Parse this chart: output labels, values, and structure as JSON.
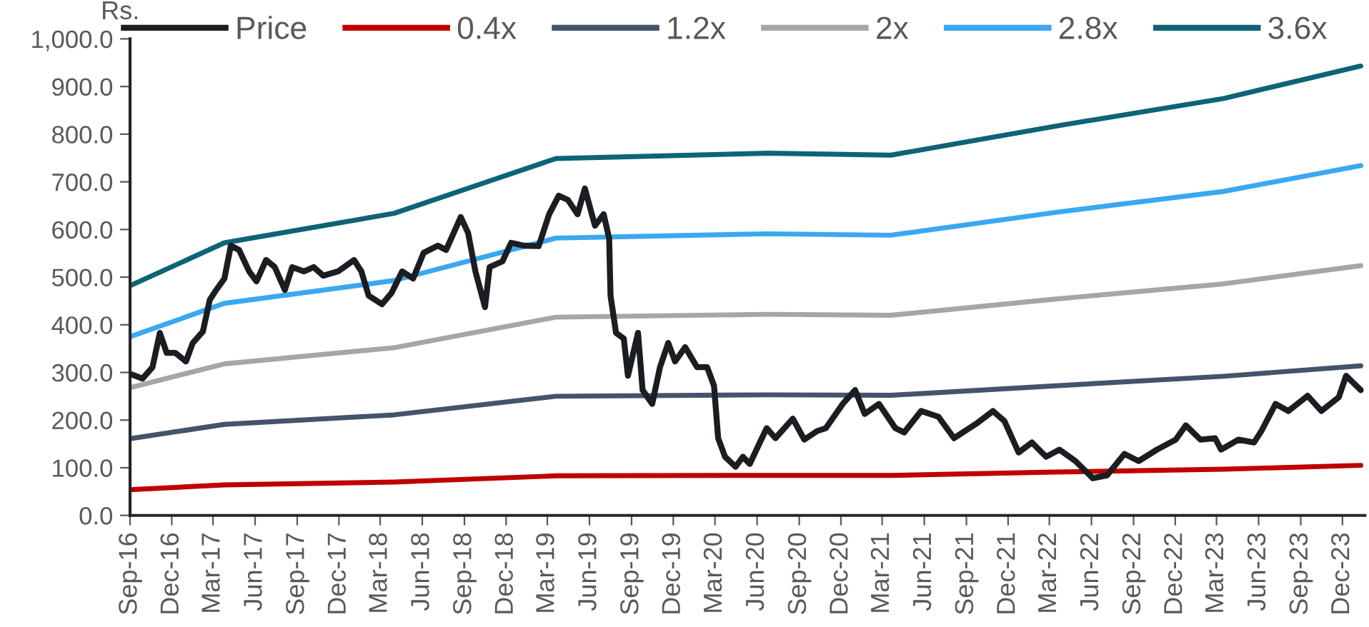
{
  "chart_data": {
    "type": "line",
    "ylabel": "Rs.",
    "legend": "top",
    "grid": false,
    "xlim": [
      "2016-09-01",
      "2024-01-19"
    ],
    "ylim": [
      0,
      1000
    ],
    "yticks": [
      {
        "value": 0,
        "label": "0.0"
      },
      {
        "value": 100,
        "label": "100.0"
      },
      {
        "value": 200,
        "label": "200.0"
      },
      {
        "value": 300,
        "label": "300.0"
      },
      {
        "value": 400,
        "label": "400.0"
      },
      {
        "value": 500,
        "label": "500.0"
      },
      {
        "value": 600,
        "label": "600.0"
      },
      {
        "value": 700,
        "label": "700.0"
      },
      {
        "value": 800,
        "label": "800.0"
      },
      {
        "value": 900,
        "label": "900.0"
      },
      {
        "value": 1000,
        "label": "1,000.0"
      }
    ],
    "xticks": [
      {
        "value": "2016-09-01",
        "label": "Sep-16"
      },
      {
        "value": "2016-12-01",
        "label": "Dec-16"
      },
      {
        "value": "2017-03-01",
        "label": "Mar-17"
      },
      {
        "value": "2017-06-01",
        "label": "Jun-17"
      },
      {
        "value": "2017-09-01",
        "label": "Sep-17"
      },
      {
        "value": "2017-12-01",
        "label": "Dec-17"
      },
      {
        "value": "2018-03-01",
        "label": "Mar-18"
      },
      {
        "value": "2018-06-01",
        "label": "Jun-18"
      },
      {
        "value": "2018-09-01",
        "label": "Sep-18"
      },
      {
        "value": "2018-12-01",
        "label": "Dec-18"
      },
      {
        "value": "2019-03-01",
        "label": "Mar-19"
      },
      {
        "value": "2019-06-01",
        "label": "Jun-19"
      },
      {
        "value": "2019-09-01",
        "label": "Sep-19"
      },
      {
        "value": "2019-12-01",
        "label": "Dec-19"
      },
      {
        "value": "2020-03-01",
        "label": "Mar-20"
      },
      {
        "value": "2020-06-01",
        "label": "Jun-20"
      },
      {
        "value": "2020-09-01",
        "label": "Sep-20"
      },
      {
        "value": "2020-12-01",
        "label": "Dec-20"
      },
      {
        "value": "2021-03-01",
        "label": "Mar-21"
      },
      {
        "value": "2021-06-01",
        "label": "Jun-21"
      },
      {
        "value": "2021-09-01",
        "label": "Sep-21"
      },
      {
        "value": "2021-12-01",
        "label": "Dec-21"
      },
      {
        "value": "2022-03-01",
        "label": "Mar-22"
      },
      {
        "value": "2022-06-01",
        "label": "Jun-22"
      },
      {
        "value": "2022-09-01",
        "label": "Sep-22"
      },
      {
        "value": "2022-12-01",
        "label": "Dec-22"
      },
      {
        "value": "2023-03-01",
        "label": "Mar-23"
      },
      {
        "value": "2023-06-01",
        "label": "Jun-23"
      },
      {
        "value": "2023-09-01",
        "label": "Sep-23"
      },
      {
        "value": "2023-12-01",
        "label": "Dec-23"
      }
    ],
    "series": [
      {
        "name": "Price",
        "color": "#1a1d21",
        "x": [
          "2016-09-04",
          "2016-09-28",
          "2016-10-20",
          "2016-11-05",
          "2016-11-20",
          "2016-12-09",
          "2017-01-01",
          "2017-01-16",
          "2017-02-07",
          "2017-02-22",
          "2017-03-08",
          "2017-03-26",
          "2017-04-09",
          "2017-04-27",
          "2017-05-19",
          "2017-06-04",
          "2017-06-25",
          "2017-07-14",
          "2017-08-05",
          "2017-08-21",
          "2017-09-16",
          "2017-10-07",
          "2017-10-28",
          "2017-11-29",
          "2018-01-03",
          "2018-01-19",
          "2018-02-04",
          "2018-03-05",
          "2018-03-26",
          "2018-04-18",
          "2018-05-12",
          "2018-06-04",
          "2018-07-05",
          "2018-07-23",
          "2018-08-24",
          "2018-09-09",
          "2018-09-25",
          "2018-10-16",
          "2018-10-26",
          "2018-11-23",
          "2018-12-12",
          "2019-01-09",
          "2019-02-10",
          "2019-03-05",
          "2019-03-26",
          "2019-04-15",
          "2019-05-06",
          "2019-05-22",
          "2019-06-13",
          "2019-07-02",
          "2019-07-14",
          "2019-07-17",
          "2019-07-29",
          "2019-08-15",
          "2019-08-24",
          "2019-09-15",
          "2019-09-25",
          "2019-10-16",
          "2019-11-02",
          "2019-11-20",
          "2019-12-05",
          "2019-12-27",
          "2020-01-22",
          "2020-02-13",
          "2020-02-28",
          "2020-03-08",
          "2020-03-23",
          "2020-04-15",
          "2020-05-01",
          "2020-05-16",
          "2020-06-07",
          "2020-06-22",
          "2020-07-11",
          "2020-08-18",
          "2020-09-12",
          "2020-10-10",
          "2020-10-29",
          "2020-12-05",
          "2021-01-01",
          "2021-01-22",
          "2021-02-22",
          "2021-03-30",
          "2021-04-18",
          "2021-05-25",
          "2021-07-02",
          "2021-08-05",
          "2021-09-22",
          "2021-10-29",
          "2021-11-23",
          "2021-12-24",
          "2022-01-22",
          "2022-02-22",
          "2022-03-23",
          "2022-04-27",
          "2022-06-04",
          "2022-07-05",
          "2022-08-12",
          "2022-09-12",
          "2022-10-22",
          "2022-12-02",
          "2022-12-24",
          "2023-01-25",
          "2023-02-26",
          "2023-03-11",
          "2023-04-18",
          "2023-05-22",
          "2023-06-07",
          "2023-07-08",
          "2023-08-05",
          "2023-09-16",
          "2023-10-16",
          "2023-11-23",
          "2023-12-09",
          "2024-01-10"
        ],
        "values": [
          296,
          287,
          311,
          383,
          341,
          341,
          323,
          362,
          386,
          452,
          473,
          497,
          566,
          557,
          512,
          491,
          536,
          521,
          473,
          521,
          512,
          521,
          503,
          512,
          536,
          512,
          461,
          443,
          467,
          512,
          497,
          551,
          566,
          557,
          626,
          593,
          512,
          437,
          521,
          533,
          572,
          566,
          565,
          632,
          671,
          662,
          632,
          686,
          608,
          632,
          581,
          461,
          383,
          371,
          293,
          383,
          263,
          234,
          311,
          362,
          323,
          353,
          311,
          311,
          272,
          162,
          123,
          102,
          123,
          108,
          153,
          183,
          162,
          203,
          159,
          177,
          183,
          234,
          263,
          213,
          234,
          183,
          174,
          219,
          207,
          162,
          192,
          219,
          198,
          132,
          153,
          123,
          138,
          114,
          78,
          84,
          129,
          114,
          138,
          159,
          189,
          159,
          162,
          138,
          159,
          153,
          177,
          234,
          219,
          251,
          219,
          248,
          293,
          263
        ]
      },
      {
        "name": "0.4x",
        "color": "#c00000",
        "x": [
          "2016-09-01",
          "2017-03-26",
          "2018-04-01",
          "2019-03-20",
          "2020-06-25",
          "2021-03-20",
          "2022-03-15",
          "2023-03-17",
          "2024-01-10"
        ],
        "values": [
          54,
          64,
          70,
          83,
          84,
          84,
          91,
          97,
          105
        ]
      },
      {
        "name": "1.2x",
        "color": "#44546a",
        "x": [
          "2016-09-01",
          "2017-03-26",
          "2018-04-01",
          "2019-03-20",
          "2020-06-25",
          "2021-03-20",
          "2022-03-15",
          "2023-03-17",
          "2024-01-10"
        ],
        "values": [
          161,
          191,
          211,
          250,
          253,
          252,
          272,
          292,
          314
        ]
      },
      {
        "name": "2x",
        "color": "#a6a6a6",
        "x": [
          "2016-09-01",
          "2017-03-26",
          "2018-04-01",
          "2019-03-20",
          "2020-06-25",
          "2021-03-20",
          "2022-03-15",
          "2023-03-17",
          "2024-01-10"
        ],
        "values": [
          268,
          318,
          352,
          416,
          422,
          420,
          454,
          486,
          524
        ]
      },
      {
        "name": "2.8x",
        "color": "#3aa8f0",
        "x": [
          "2016-09-01",
          "2017-03-26",
          "2018-04-01",
          "2019-03-20",
          "2020-06-25",
          "2021-03-20",
          "2022-03-15",
          "2023-03-17",
          "2024-01-10"
        ],
        "values": [
          375,
          445,
          493,
          582,
          591,
          588,
          636,
          680,
          734
        ]
      },
      {
        "name": "3.6x",
        "color": "#0e6377",
        "x": [
          "2016-09-01",
          "2017-03-26",
          "2018-04-01",
          "2019-03-20",
          "2020-06-25",
          "2021-03-20",
          "2022-03-15",
          "2023-03-17",
          "2024-01-10"
        ],
        "values": [
          482,
          572,
          634,
          749,
          760,
          756,
          817,
          875,
          943
        ]
      }
    ]
  }
}
